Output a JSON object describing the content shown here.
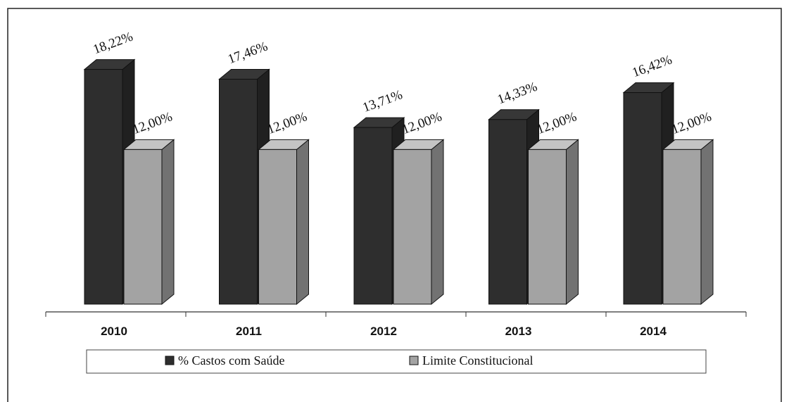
{
  "chart_data": {
    "type": "bar3d",
    "categories": [
      "2010",
      "2011",
      "2012",
      "2013",
      "2014"
    ],
    "series": [
      {
        "name": "% Castos com Saúde",
        "color": "#2e2e2e",
        "values": [
          18.22,
          17.46,
          13.71,
          14.33,
          16.42
        ],
        "value_labels": [
          "18,22%",
          "17,46%",
          "13,71%",
          "14,33%",
          "16,42%"
        ]
      },
      {
        "name": "Limite Constitucional",
        "color": "#a3a3a3",
        "values": [
          12.0,
          12.0,
          12.0,
          12.0,
          12.0
        ],
        "value_labels": [
          "12,00%",
          "12,00%",
          "12,00%",
          "12,00%",
          "12,00%"
        ]
      }
    ]
  }
}
